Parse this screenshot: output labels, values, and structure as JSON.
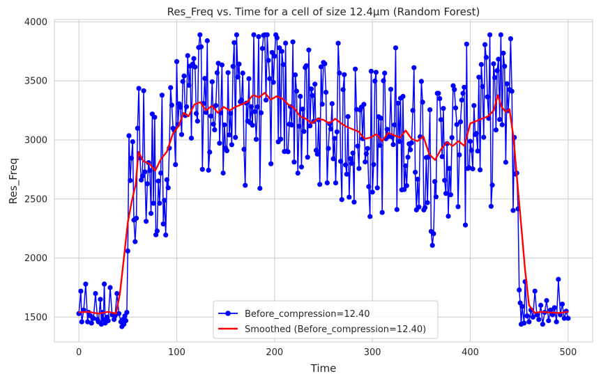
{
  "chart_data": {
    "type": "line",
    "title": "Res_Freq vs. Time for a cell of size 12.4µm (Random Forest)",
    "xlabel": "Time",
    "ylabel": "Res_Freq",
    "xlim": [
      -25,
      525
    ],
    "ylim": [
      1290,
      4020
    ],
    "xticks": [
      0,
      100,
      200,
      300,
      400,
      500
    ],
    "yticks": [
      1500,
      2000,
      2500,
      3000,
      3500,
      4000
    ],
    "grid": true,
    "legend_position": "bottom-center",
    "series": [
      {
        "name": "Before_compression=12.40",
        "color": "#0000ff",
        "style": "line-markers",
        "segments": [
          {
            "x_start": 0,
            "x_end": 49,
            "points": [
              [
                0,
                1530
              ],
              [
                2,
                1720
              ],
              [
                3,
                1460
              ],
              [
                5,
                1560
              ],
              [
                7,
                1780
              ],
              [
                9,
                1460
              ],
              [
                10,
                1540
              ],
              [
                12,
                1510
              ],
              [
                13,
                1450
              ],
              [
                15,
                1490
              ],
              [
                17,
                1700
              ],
              [
                19,
                1480
              ],
              [
                20,
                1460
              ],
              [
                22,
                1650
              ],
              [
                23,
                1440
              ],
              [
                24,
                1540
              ],
              [
                25,
                1480
              ],
              [
                26,
                1780
              ],
              [
                27,
                1450
              ],
              [
                29,
                1500
              ],
              [
                30,
                1470
              ],
              [
                32,
                1750
              ],
              [
                34,
                1520
              ],
              [
                36,
                1480
              ],
              [
                37,
                1510
              ],
              [
                39,
                1700
              ],
              [
                41,
                1530
              ],
              [
                43,
                1460
              ],
              [
                44,
                1420
              ],
              [
                45,
                1480
              ],
              [
                46,
                1440
              ],
              [
                47,
                1510
              ],
              [
                48,
                1470
              ],
              [
                49,
                1540
              ]
            ]
          },
          {
            "x_start": 50,
            "x_end": 449,
            "mean_range": [
              2800,
              3400
            ],
            "min": 2060,
            "max": 3890
          },
          {
            "x_start": 450,
            "x_end": 500,
            "points": [
              [
                450,
                1730
              ],
              [
                451,
                1620
              ],
              [
                452,
                1440
              ],
              [
                453,
                1590
              ],
              [
                455,
                1450
              ],
              [
                456,
                1800
              ],
              [
                458,
                1510
              ],
              [
                460,
                1460
              ],
              [
                462,
                1560
              ],
              [
                464,
                1500
              ],
              [
                466,
                1720
              ],
              [
                468,
                1520
              ],
              [
                470,
                1480
              ],
              [
                472,
                1600
              ],
              [
                474,
                1440
              ],
              [
                476,
                1540
              ],
              [
                478,
                1640
              ],
              [
                480,
                1470
              ],
              [
                482,
                1560
              ],
              [
                484,
                1520
              ],
              [
                486,
                1580
              ],
              [
                488,
                1460
              ],
              [
                490,
                1820
              ],
              [
                492,
                1520
              ],
              [
                494,
                1610
              ],
              [
                496,
                1490
              ],
              [
                498,
                1550
              ],
              [
                500,
                1490
              ]
            ]
          }
        ]
      },
      {
        "name": "Smoothed (Before_compression=12.40)",
        "color": "#ff0000",
        "style": "line",
        "points": [
          [
            0,
            1540
          ],
          [
            10,
            1545
          ],
          [
            20,
            1530
          ],
          [
            30,
            1545
          ],
          [
            38,
            1530
          ],
          [
            42,
            1700
          ],
          [
            46,
            2000
          ],
          [
            50,
            2300
          ],
          [
            54,
            2480
          ],
          [
            58,
            2620
          ],
          [
            61,
            2900
          ],
          [
            66,
            2820
          ],
          [
            72,
            2800
          ],
          [
            78,
            2740
          ],
          [
            84,
            2840
          ],
          [
            90,
            2900
          ],
          [
            96,
            3050
          ],
          [
            102,
            3120
          ],
          [
            107,
            3230
          ],
          [
            112,
            3200
          ],
          [
            118,
            3300
          ],
          [
            124,
            3320
          ],
          [
            130,
            3250
          ],
          [
            136,
            3290
          ],
          [
            142,
            3230
          ],
          [
            148,
            3280
          ],
          [
            154,
            3250
          ],
          [
            160,
            3280
          ],
          [
            166,
            3300
          ],
          [
            172,
            3320
          ],
          [
            178,
            3380
          ],
          [
            184,
            3360
          ],
          [
            190,
            3400
          ],
          [
            196,
            3340
          ],
          [
            202,
            3370
          ],
          [
            208,
            3350
          ],
          [
            214,
            3300
          ],
          [
            220,
            3270
          ],
          [
            226,
            3200
          ],
          [
            232,
            3180
          ],
          [
            238,
            3140
          ],
          [
            244,
            3180
          ],
          [
            250,
            3170
          ],
          [
            256,
            3140
          ],
          [
            262,
            3180
          ],
          [
            268,
            3140
          ],
          [
            274,
            3110
          ],
          [
            280,
            3090
          ],
          [
            286,
            3070
          ],
          [
            292,
            3010
          ],
          [
            298,
            3020
          ],
          [
            304,
            3050
          ],
          [
            310,
            2990
          ],
          [
            316,
            3060
          ],
          [
            322,
            3040
          ],
          [
            328,
            3020
          ],
          [
            334,
            3080
          ],
          [
            340,
            3010
          ],
          [
            346,
            2990
          ],
          [
            352,
            3030
          ],
          [
            358,
            2880
          ],
          [
            364,
            2830
          ],
          [
            370,
            2920
          ],
          [
            376,
            2980
          ],
          [
            382,
            2950
          ],
          [
            388,
            2990
          ],
          [
            394,
            2950
          ],
          [
            400,
            3140
          ],
          [
            406,
            3160
          ],
          [
            412,
            3180
          ],
          [
            418,
            3200
          ],
          [
            424,
            3250
          ],
          [
            428,
            3380
          ],
          [
            432,
            3280
          ],
          [
            436,
            3240
          ],
          [
            440,
            3260
          ],
          [
            444,
            3030
          ],
          [
            448,
            2650
          ],
          [
            452,
            2280
          ],
          [
            456,
            1900
          ],
          [
            460,
            1600
          ],
          [
            466,
            1535
          ],
          [
            472,
            1545
          ],
          [
            480,
            1540
          ],
          [
            490,
            1535
          ],
          [
            500,
            1545
          ]
        ]
      }
    ]
  }
}
